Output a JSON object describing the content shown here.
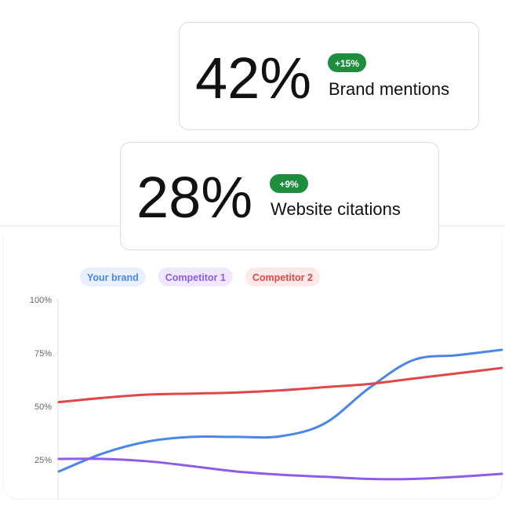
{
  "cards": [
    {
      "value": "42%",
      "change": "+15%",
      "label": "Brand mentions"
    },
    {
      "value": "28%",
      "change": "+9%",
      "label": "Website citations"
    }
  ],
  "chart_data": {
    "type": "line",
    "categories": [
      null,
      null,
      null,
      null,
      null,
      null,
      null,
      null,
      null,
      null,
      null
    ],
    "series": [
      {
        "name": "Your brand",
        "color": "#4a86e8",
        "values": [
          19.5,
          28,
          33.5,
          35.7,
          35.7,
          36,
          42,
          58.5,
          71.7,
          74,
          76.5
        ]
      },
      {
        "name": "Competitor 1",
        "color": "#8e5ce8",
        "values": [
          25.4,
          25.4,
          24.3,
          22,
          19.5,
          18,
          17,
          16,
          16,
          17,
          18.4
        ]
      },
      {
        "name": "Competitor 2",
        "color": "#e04848",
        "values": [
          52,
          54,
          55.5,
          56,
          56.5,
          57.5,
          59,
          60.5,
          63,
          65.5,
          68
        ]
      }
    ],
    "ylim": [
      7,
      100
    ],
    "yticks": [
      {
        "value": 25,
        "label": "25%"
      },
      {
        "value": 50,
        "label": "50%"
      },
      {
        "value": 75,
        "label": "75%"
      },
      {
        "value": 100,
        "label": "100%"
      }
    ]
  }
}
